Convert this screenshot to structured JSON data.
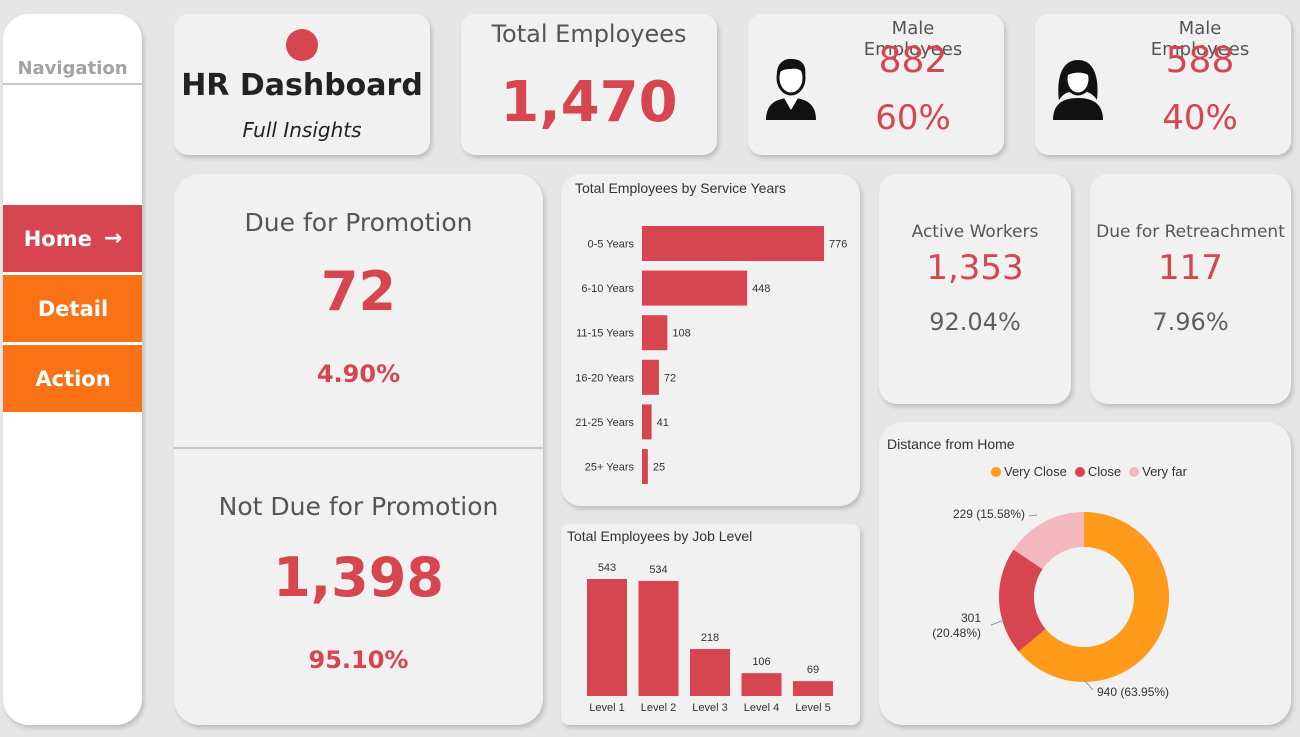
{
  "navigation": {
    "title": "Navigation",
    "items": [
      {
        "label": "Home",
        "arrow": "→"
      },
      {
        "label": "Detail"
      },
      {
        "label": "Action"
      }
    ]
  },
  "header": {
    "title": "HR Dashboard",
    "subtitle": "Full Insights"
  },
  "kpis": {
    "total": {
      "label": "Total Employees",
      "value": "1,470"
    },
    "male": {
      "label": "Male Employees",
      "count": "882",
      "pct": "60%",
      "icon": "male-user-icon"
    },
    "female": {
      "label": "Male Employees",
      "count": "588",
      "pct": "40%",
      "icon": "female-user-icon"
    },
    "due_promotion": {
      "label": "Due for Promotion",
      "value": "72",
      "pct": "4.90%"
    },
    "not_due_promotion": {
      "label": "Not Due for Promotion",
      "value": "1,398",
      "pct": "95.10%"
    },
    "active": {
      "label": "Active Workers",
      "value": "1,353",
      "pct": "92.04%"
    },
    "retrenchment": {
      "label": "Due for Retreachment",
      "value": "117",
      "pct": "7.96%"
    }
  },
  "colors": {
    "accent": "#d64550",
    "orange": "#f97316",
    "donut_orange": "#ff9a1a",
    "donut_pink": "#f2b8bd"
  },
  "chart_data": [
    {
      "type": "bar",
      "orientation": "horizontal",
      "title": "Total Employees by Service Years",
      "categories": [
        "0-5 Years",
        "6-10 Years",
        "11-15 Years",
        "16-20 Years",
        "21-25 Years",
        "25+ Years"
      ],
      "values": [
        776,
        448,
        108,
        72,
        41,
        25
      ],
      "grid": false
    },
    {
      "type": "bar",
      "orientation": "vertical",
      "title": "Total Employees by Job Level",
      "categories": [
        "Level 1",
        "Level 2",
        "Level 3",
        "Level 4",
        "Level 5"
      ],
      "values": [
        543,
        534,
        218,
        106,
        69
      ],
      "grid": false
    },
    {
      "type": "pie",
      "donut": true,
      "title": "Distance from Home",
      "legend": "top",
      "categories": [
        "Very Close",
        "Close",
        "Very far"
      ],
      "values": [
        940,
        301,
        229
      ],
      "labels": [
        "940 (63.95%)",
        "301 (20.48%)",
        "229 (15.58%)"
      ],
      "colors": [
        "#ff9a1a",
        "#d64550",
        "#f2b8bd"
      ]
    }
  ]
}
